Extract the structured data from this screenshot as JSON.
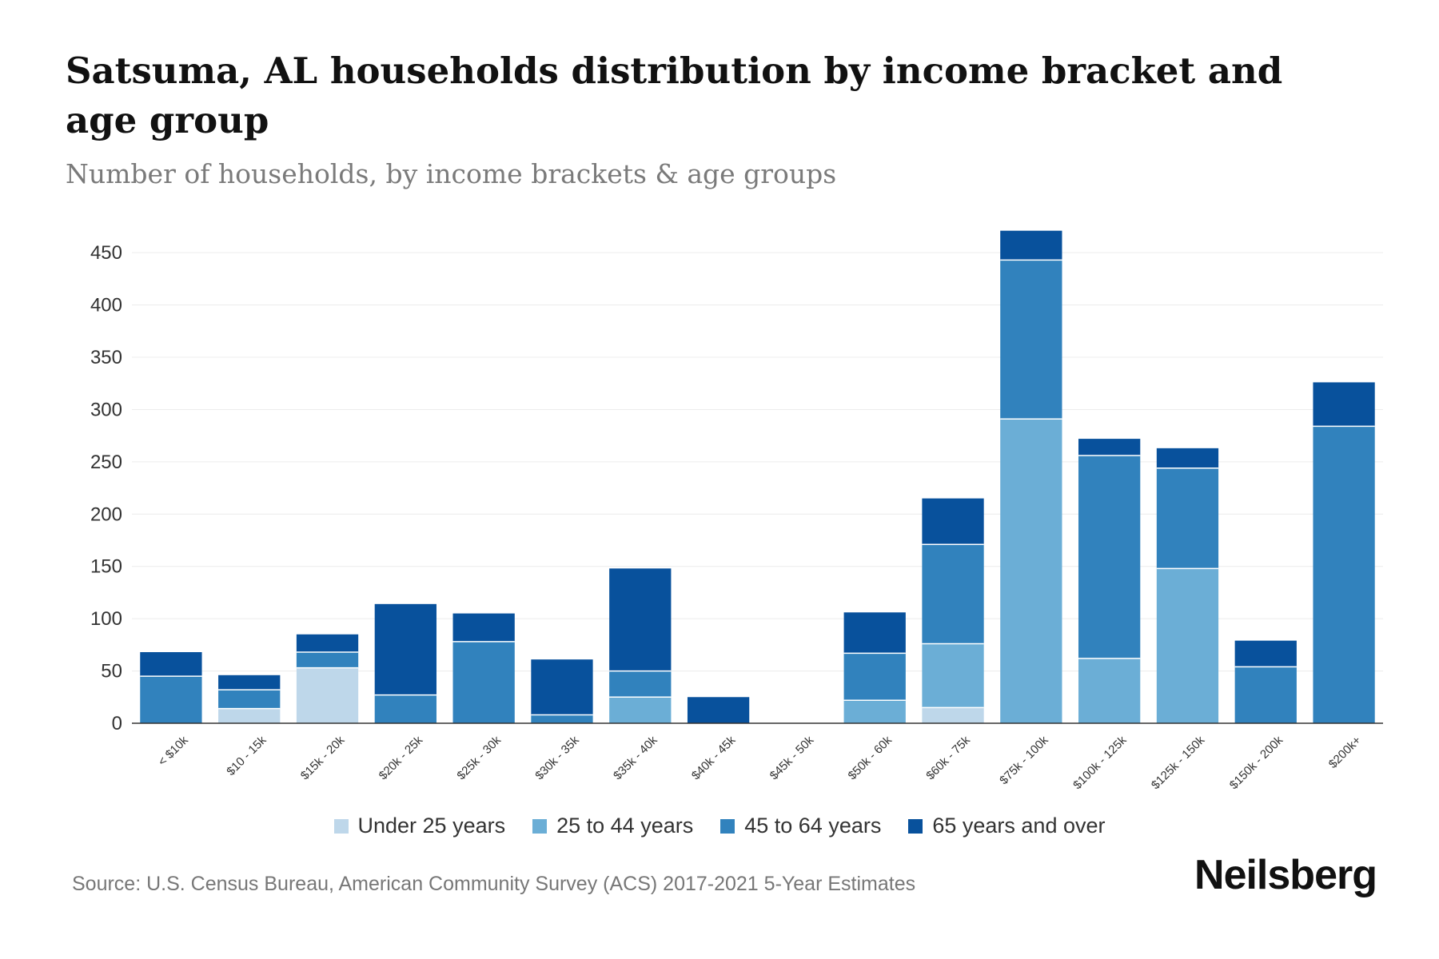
{
  "chart_data": {
    "type": "bar",
    "stacked": true,
    "title": "Satsuma, AL households distribution by income bracket and age group",
    "subtitle": "Number of households, by income brackets & age groups",
    "xlabel": "",
    "ylabel": "",
    "ylim": [
      0,
      470
    ],
    "yticks": [
      0,
      50,
      100,
      150,
      200,
      250,
      300,
      350,
      400,
      450
    ],
    "grid": true,
    "legend_position": "bottom",
    "categories": [
      "< $10k",
      "$10 - 15k",
      "$15k - 20k",
      "$20k - 25k",
      "$25k - 30k",
      "$30k - 35k",
      "$35k - 40k",
      "$40k - 45k",
      "$45k - 50k",
      "$50k - 60k",
      "$60k - 75k",
      "$75k - 100k",
      "$100k - 125k",
      "$125k - 150k",
      "$150k - 200k",
      "$200k+"
    ],
    "series": [
      {
        "name": "Under 25 years",
        "color": "#bed7ea",
        "values": [
          0,
          14,
          53,
          0,
          0,
          0,
          0,
          0,
          0,
          0,
          15,
          0,
          0,
          0,
          0,
          0
        ]
      },
      {
        "name": "25 to 44 years",
        "color": "#6baed6",
        "values": [
          0,
          0,
          0,
          0,
          0,
          0,
          25,
          0,
          0,
          22,
          61,
          291,
          62,
          148,
          0,
          0
        ]
      },
      {
        "name": "45 to 64 years",
        "color": "#3182bd",
        "values": [
          45,
          18,
          15,
          27,
          78,
          8,
          25,
          0,
          0,
          45,
          95,
          152,
          194,
          96,
          54,
          284
        ]
      },
      {
        "name": "65 years and over",
        "color": "#08519c",
        "values": [
          23,
          14,
          17,
          87,
          27,
          53,
          98,
          25,
          0,
          39,
          44,
          28,
          16,
          19,
          25,
          42
        ]
      }
    ]
  },
  "footer": {
    "source": "Source: U.S. Census Bureau, American Community Survey (ACS) 2017-2021 5-Year Estimates",
    "brand": "Neilsberg"
  }
}
